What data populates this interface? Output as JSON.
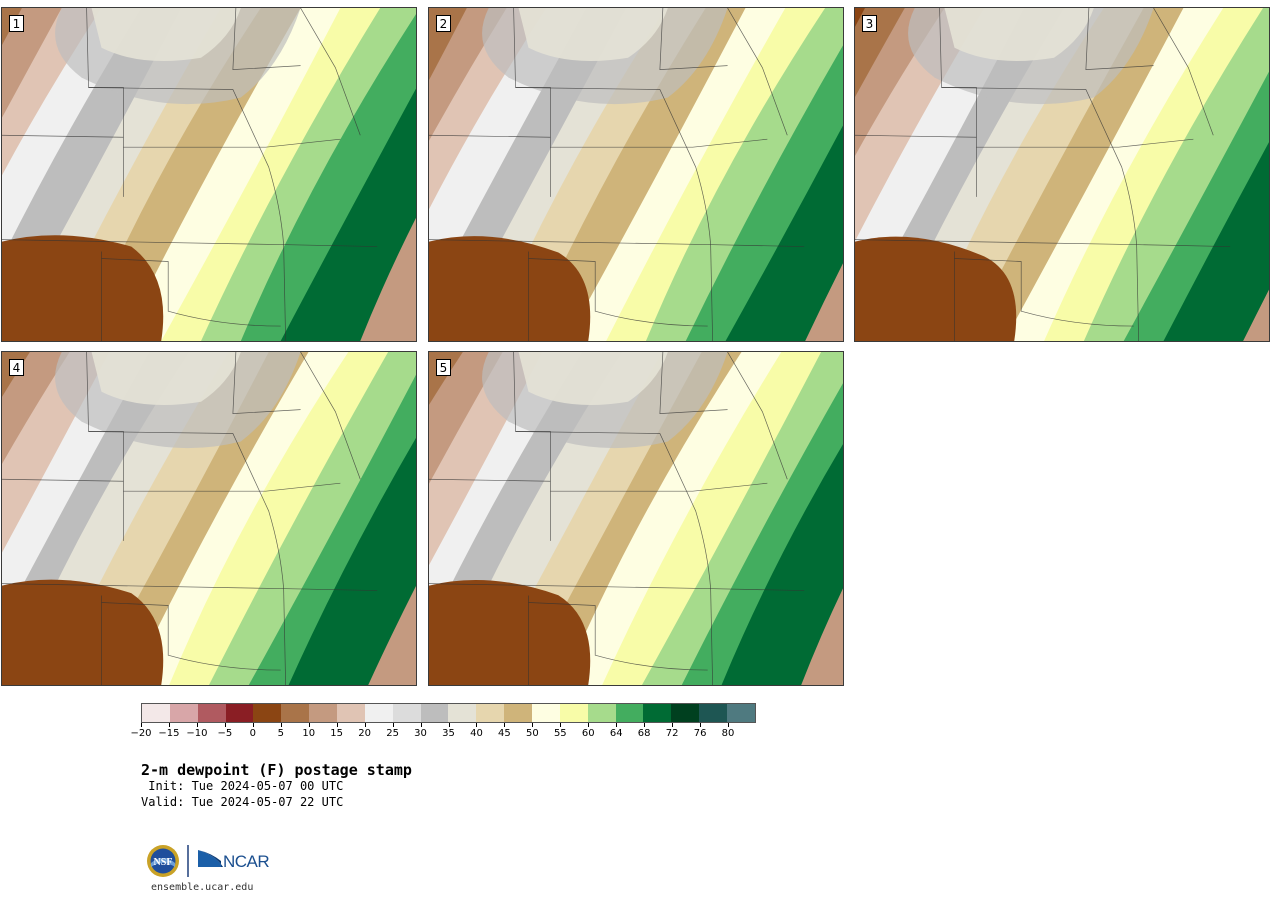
{
  "panels": [
    {
      "label": "1"
    },
    {
      "label": "2"
    },
    {
      "label": "3"
    },
    {
      "label": "4"
    },
    {
      "label": "5"
    }
  ],
  "colorbar": {
    "colors": [
      "#f3e8e8",
      "#d8a6a8",
      "#b05a60",
      "#8a1e24",
      "#8b4513",
      "#a97449",
      "#c49a80",
      "#e0c4b4",
      "#f0f0f0",
      "#dcdcdc",
      "#bdbdbd",
      "#e4e2d6",
      "#e6d6ae",
      "#cfb47a",
      "#fefee2",
      "#f8fca8",
      "#a6db8c",
      "#43ad5f",
      "#006b34",
      "#00401f",
      "#1e5653",
      "#4f7a80"
    ],
    "tick_labels": [
      "−20",
      "−15",
      "−10",
      "−5",
      "0",
      "5",
      "10",
      "15",
      "20",
      "25",
      "30",
      "35",
      "40",
      "45",
      "50",
      "55",
      "60",
      "64",
      "68",
      "72",
      "76",
      "80"
    ]
  },
  "title": "2-m dewpoint (F) postage stamp",
  "init": " Init: Tue 2024-05-07 00 UTC",
  "valid": "Valid: Tue 2024-05-07 22 UTC",
  "logo_text": "NCAR",
  "seal_text": "NSF",
  "url": "ensemble.ucar.edu"
}
